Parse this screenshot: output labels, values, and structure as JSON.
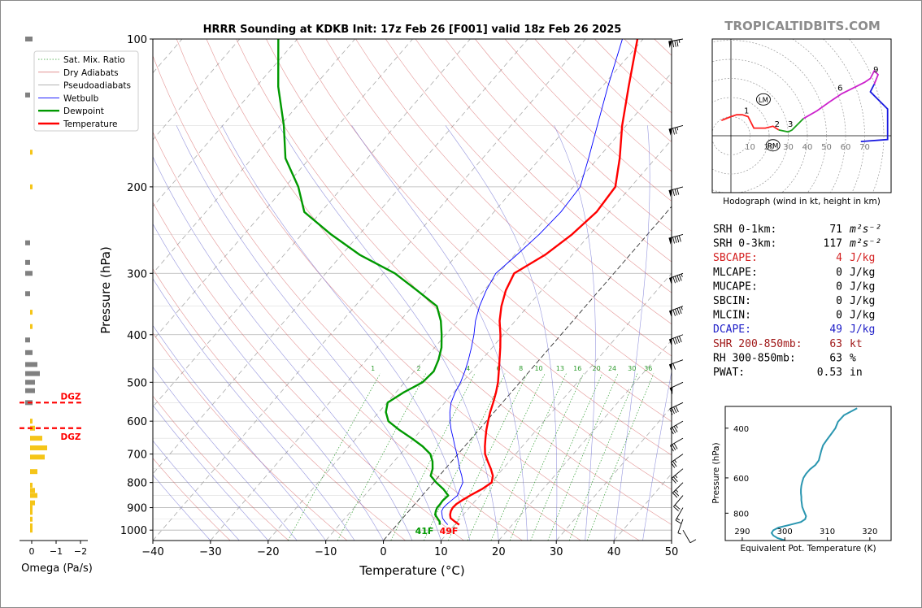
{
  "title": "HRRR Sounding at KDKB Init: 17z Feb 26 [F001] valid 18z Feb 26 2025",
  "watermark": "TROPICALTIDBITS.COM",
  "skewt": {
    "xlabel": "Temperature (°C)",
    "ylabel": "Pressure (hPa)",
    "xticks": [
      -40,
      -30,
      -20,
      -10,
      0,
      10,
      20,
      30,
      40,
      50
    ],
    "xtick_labels": [
      "−40",
      "−30",
      "−20",
      "−10",
      "0",
      "10",
      "20",
      "30",
      "40",
      "50"
    ],
    "yticks": [
      100,
      200,
      300,
      400,
      500,
      600,
      700,
      800,
      900,
      1000
    ],
    "legend": [
      "Sat. Mix. Ratio",
      "Dry Adiabats",
      "Pseudoadiabats",
      "Wetbulb",
      "Dewpoint",
      "Temperature"
    ],
    "mixing_ratio_labels": [
      "1",
      "2",
      "4",
      "6",
      "8",
      "10",
      "13",
      "16",
      "20",
      "24",
      "30",
      "36"
    ],
    "surface_temp_label": "49F",
    "surface_dewpoint_label": "41F",
    "colors": {
      "temperature": "#ff0000",
      "dewpoint": "#009900",
      "wetbulb": "#0000ff",
      "mixing": "#2e9c2e",
      "dry": "#d25050",
      "moist": "#6a6ad0",
      "dgz": "#ff0000"
    }
  },
  "chart_data": [
    {
      "type": "line",
      "name": "skew-t",
      "xlabel": "Temperature (°C)",
      "ylabel": "Pressure (hPa)",
      "xlim": [
        -40,
        50
      ],
      "ylim": [
        1050,
        100
      ],
      "yscale": "log",
      "series": [
        {
          "name": "Temperature",
          "p": [
            975,
            960,
            945,
            930,
            915,
            900,
            885,
            870,
            850,
            825,
            800,
            775,
            750,
            725,
            700,
            675,
            650,
            625,
            600,
            575,
            550,
            525,
            500,
            475,
            450,
            425,
            400,
            375,
            350,
            325,
            300,
            275,
            250,
            225,
            200,
            175,
            150,
            125,
            100
          ],
          "t": [
            10.8,
            9.5,
            8.3,
            7.7,
            7.3,
            7.1,
            7.2,
            7.6,
            8.3,
            9.4,
            10.1,
            9.3,
            7.9,
            6.3,
            4.7,
            3.5,
            2.4,
            1.3,
            0.3,
            -0.7,
            -1.6,
            -2.6,
            -3.8,
            -5.3,
            -6.9,
            -8.6,
            -10.5,
            -12.7,
            -14.6,
            -16.2,
            -17.3,
            -14.7,
            -13.1,
            -12.2,
            -12.7,
            -16.2,
            -20.7,
            -25.4,
            -31.0
          ]
        },
        {
          "name": "Dewpoint",
          "p": [
            975,
            960,
            945,
            930,
            915,
            900,
            885,
            870,
            850,
            825,
            800,
            775,
            750,
            725,
            700,
            675,
            650,
            625,
            600,
            575,
            550,
            525,
            500,
            475,
            450,
            425,
            400,
            375,
            350,
            325,
            300,
            275,
            250,
            225,
            200,
            175,
            150,
            125,
            100
          ],
          "t": [
            7.4,
            6.9,
            6.0,
            5.1,
            4.7,
            4.4,
            4.4,
            4.3,
            4.5,
            2.7,
            0.5,
            -1.5,
            -2.2,
            -3.3,
            -4.8,
            -7.3,
            -10.4,
            -13.8,
            -17.0,
            -18.8,
            -19.9,
            -18.7,
            -16.9,
            -16.6,
            -17.5,
            -18.8,
            -20.7,
            -22.9,
            -25.8,
            -31.6,
            -38.0,
            -46.9,
            -54.9,
            -62.9,
            -67.7,
            -74.2,
            -79.4,
            -86.2,
            -93.3
          ]
        },
        {
          "name": "Wetbulb",
          "p": [
            975,
            960,
            945,
            930,
            915,
            900,
            885,
            870,
            850,
            825,
            800,
            775,
            750,
            725,
            700,
            675,
            650,
            625,
            600,
            575,
            550,
            525,
            500,
            475,
            450,
            425,
            400,
            375,
            350,
            325,
            300,
            275,
            250,
            225,
            200,
            175,
            150,
            125,
            100
          ],
          "t": [
            8.8,
            7.8,
            6.9,
            6.3,
            5.7,
            5.5,
            5.6,
            5.8,
            6.1,
            5.6,
            5.1,
            3.9,
            2.5,
            1.2,
            -0.2,
            -1.7,
            -3.2,
            -4.8,
            -6.3,
            -7.7,
            -8.9,
            -9.7,
            -10.3,
            -11.2,
            -12.3,
            -13.6,
            -15.1,
            -16.9,
            -18.4,
            -19.6,
            -20.5,
            -19.6,
            -18.8,
            -18.4,
            -18.8,
            -21.6,
            -25.0,
            -29.0,
            -33.6
          ]
        }
      ]
    },
    {
      "type": "bar",
      "name": "omega",
      "xlabel": "Omega (Pa/s)",
      "xticks": [
        0,
        -1,
        -2
      ],
      "xtick_labels": [
        "0",
        "−1",
        "−2"
      ],
      "dgz_label": "DGZ",
      "dgz_levels": [
        550,
        620
      ],
      "p": [
        100,
        130,
        170,
        200,
        260,
        285,
        300,
        330,
        360,
        385,
        410,
        435,
        460,
        480,
        500,
        520,
        550,
        600,
        620,
        650,
        680,
        710,
        760,
        810,
        830,
        850,
        880,
        900,
        920,
        950,
        980,
        1000
      ],
      "omega": [
        -0.3,
        -0.2,
        0.0,
        0.0,
        -0.1,
        -0.2,
        -0.3,
        -0.1,
        0.0,
        0.0,
        -0.1,
        -0.3,
        -0.5,
        -0.6,
        -0.4,
        -0.4,
        -0.3,
        0.1,
        0.2,
        0.5,
        0.7,
        0.6,
        0.3,
        0.1,
        0.2,
        0.3,
        0.2,
        0.1,
        0.1,
        0.1,
        0.1,
        0.1
      ]
    },
    {
      "type": "line",
      "name": "hodograph",
      "title": "Hodograph (wind in kt, height in km)",
      "ring_labels": [
        "10",
        "20",
        "30",
        "40",
        "50",
        "60",
        "70"
      ],
      "height_labels": [
        "1",
        "2",
        "3",
        "6",
        "9"
      ],
      "markers": [
        "LM",
        "RM"
      ],
      "x": [
        -5,
        0,
        3,
        6,
        9,
        12,
        15,
        18,
        22,
        25,
        30,
        32,
        38,
        45,
        52,
        58,
        66,
        70,
        73,
        75,
        77,
        75,
        73,
        78,
        82,
        82,
        82,
        68
      ],
      "y": [
        8,
        10,
        11,
        11,
        10,
        4,
        4,
        4,
        5,
        3,
        2,
        3,
        9,
        13,
        18,
        22,
        26,
        28,
        30,
        34,
        32,
        27,
        23,
        18,
        14,
        4,
        -2,
        -3
      ]
    },
    {
      "type": "line",
      "name": "theta-e",
      "xlabel": "Equivalent Pot. Temperature (K)",
      "ylabel": "Pressure (hPa)",
      "xlim": [
        286,
        325
      ],
      "ylim": [
        1000,
        335
      ],
      "xticks": [
        290,
        300,
        310,
        320
      ],
      "yticks": [
        400,
        600,
        800
      ],
      "series": [
        {
          "name": "theta-e",
          "p": [
            1000,
            980,
            960,
            940,
            920,
            900,
            880,
            860,
            840,
            820,
            800,
            780,
            760,
            740,
            720,
            700,
            680,
            660,
            640,
            620,
            600,
            580,
            560,
            540,
            520,
            500,
            480,
            460,
            440,
            420,
            400,
            380,
            360,
            340
          ],
          "thetae": [
            300.1,
            298.3,
            297.3,
            296.9,
            297.3,
            298.5,
            301.2,
            303.8,
            304.8,
            305.0,
            304.7,
            304.4,
            304.1,
            304.0,
            303.9,
            303.9,
            303.8,
            303.8,
            303.9,
            304.1,
            304.4,
            305.0,
            305.9,
            307.2,
            308.0,
            308.3,
            308.6,
            309.0,
            309.9,
            310.9,
            311.9,
            312.5,
            313.9,
            317.0
          ]
        }
      ]
    }
  ],
  "stats": [
    {
      "label": "SRH 0-1km:",
      "value": "71",
      "unit": "m²s⁻²",
      "color": "#000000"
    },
    {
      "label": "SRH 0-3km:",
      "value": "117",
      "unit": "m²s⁻²",
      "color": "#000000"
    },
    {
      "label": "SBCAPE:",
      "value": "4",
      "unit": "J/kg",
      "color": "#d42020"
    },
    {
      "label": "MLCAPE:",
      "value": "0",
      "unit": "J/kg",
      "color": "#000000"
    },
    {
      "label": "MUCAPE:",
      "value": "0",
      "unit": "J/kg",
      "color": "#000000"
    },
    {
      "label": "SBCIN:",
      "value": "0",
      "unit": "J/kg",
      "color": "#000000"
    },
    {
      "label": "MLCIN:",
      "value": "0",
      "unit": "J/kg",
      "color": "#000000"
    },
    {
      "label": "DCAPE:",
      "value": "49",
      "unit": "J/kg",
      "color": "#2020c8"
    },
    {
      "label": "SHR 200-850mb:",
      "value": "63",
      "unit": "kt",
      "color": "#a01818"
    },
    {
      "label": "RH 300-850mb:",
      "value": "63",
      "unit": "%",
      "color": "#000000"
    },
    {
      "label": "PWAT:",
      "value": "0.53",
      "unit": "in",
      "color": "#000000"
    }
  ],
  "wind_barbs": {
    "p": [
      100,
      150,
      200,
      250,
      300,
      350,
      400,
      450,
      500,
      550,
      600,
      650,
      700,
      750,
      800,
      850,
      900,
      950,
      1000
    ],
    "speed_kt": [
      85,
      75,
      80,
      90,
      95,
      95,
      90,
      60,
      50,
      40,
      35,
      30,
      25,
      25,
      25,
      20,
      15,
      5,
      10
    ],
    "dir_deg": [
      260,
      255,
      255,
      255,
      250,
      250,
      250,
      250,
      245,
      245,
      240,
      240,
      235,
      230,
      225,
      220,
      210,
      200,
      150
    ]
  }
}
